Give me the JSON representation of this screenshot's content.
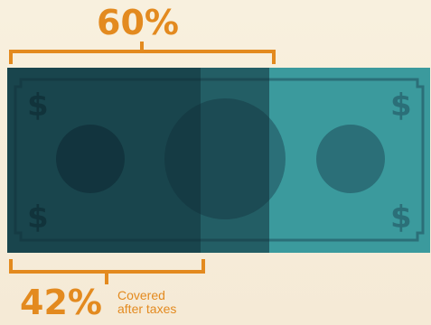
{
  "headline": {
    "percent_label": "60%"
  },
  "bill": {
    "symbol": "$",
    "colors": {
      "dark": "#173a45",
      "light": "#3b9a9d",
      "accent": "#e38a1f",
      "background": "#f7eedb"
    }
  },
  "footer": {
    "percent_label": "42%",
    "caption_line1": "Covered",
    "caption_line2": "after taxes"
  }
}
